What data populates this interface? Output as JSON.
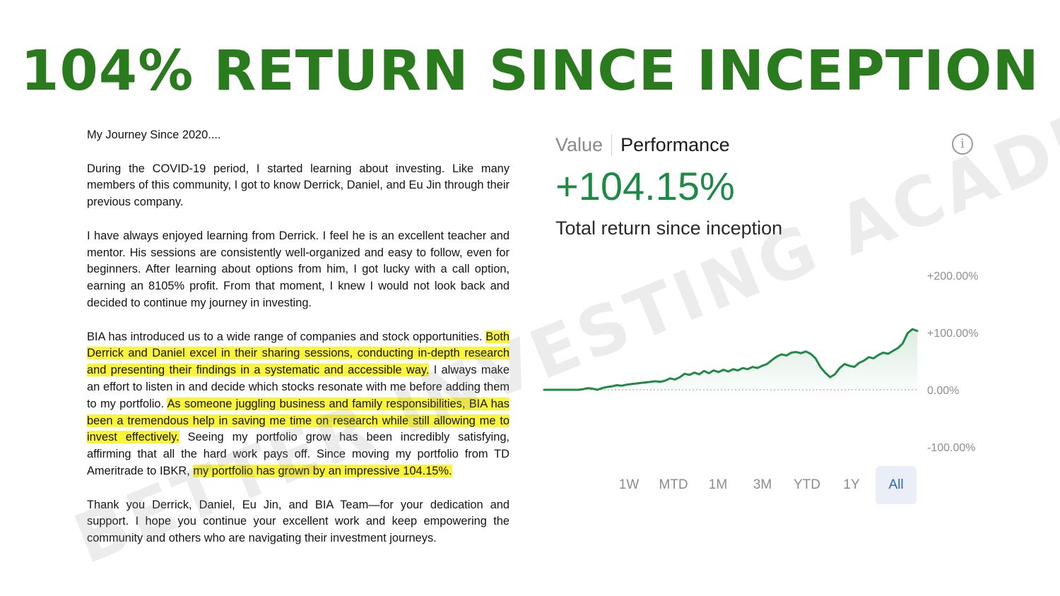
{
  "headline": "104% RETURN SINCE INCEPTION",
  "watermark": "BETTER INVESTING ACADEMY",
  "letter": {
    "intro": "My Journey Since 2020....",
    "p1": "During the COVID-19 period, I started learning about investing. Like many members of this community, I got to know Derrick, Daniel, and Eu Jin through their previous company.",
    "p2": "I have always enjoyed learning from Derrick. I feel he is an excellent teacher and mentor. His sessions are consistently well-organized and easy to follow, even for beginners. After learning about options from him, I got lucky with a call option, earning an 8105% profit. From that moment, I knew I would not look back and decided to continue my journey in investing.",
    "p3": {
      "s1": "BIA has introduced us to a wide range of companies and stock opportunities. ",
      "h1": "Both Derrick and Daniel excel in their sharing sessions, conducting in-depth research and presenting their findings in a systematic and accessible way.",
      "s2": " I always make an effort to listen in and decide which stocks resonate with me before adding them to my portfolio. ",
      "h2": "As someone juggling business and family responsibilities, BIA has been a tremendous help in saving me time on research while still allowing me to invest effectively.",
      "s3": " Seeing my portfolio grow has been incredibly satisfying, affirming that all the hard work pays off. Since moving my portfolio from TD Ameritrade to IBKR, ",
      "h3": "my portfolio has grown by an impressive 104.15%."
    },
    "p4": "Thank you Derrick, Daniel, Eu Jin, and BIA Team—for your dedication and support. I hope you continue your excellent work and keep empowering the community and others who are navigating their investment journeys."
  },
  "panel": {
    "tab_value": "Value",
    "tab_performance": "Performance",
    "info_icon": "i",
    "big_value": "+104.15%",
    "caption": "Total return since inception",
    "ranges": [
      "1W",
      "MTD",
      "1M",
      "3M",
      "YTD",
      "1Y",
      "All"
    ],
    "active_range": "All",
    "line_color": "#1e8a45",
    "active_range_color": "#2e62c2"
  },
  "chart_data": {
    "type": "area",
    "y_ticks": [
      "+200.00%",
      "+100.00%",
      "0.00%",
      "-100.00%"
    ],
    "ylim": [
      -100,
      200
    ],
    "grid": false,
    "series": [
      {
        "values": [
          0,
          0,
          0,
          0,
          0,
          0,
          0,
          0,
          1,
          3,
          2,
          0,
          3,
          5,
          6,
          8,
          7,
          9,
          10,
          11,
          12,
          13,
          14,
          15,
          14,
          16,
          20,
          18,
          22,
          28,
          26,
          30,
          27,
          33,
          29,
          34,
          31,
          35,
          32,
          36,
          34,
          38,
          36,
          40,
          38,
          42,
          45,
          52,
          58,
          62,
          60,
          65,
          66,
          64,
          67,
          63,
          55,
          40,
          30,
          22,
          27,
          38,
          45,
          42,
          40,
          47,
          51,
          57,
          55,
          61,
          65,
          63,
          68,
          73,
          81,
          99,
          106,
          103
        ]
      }
    ]
  }
}
